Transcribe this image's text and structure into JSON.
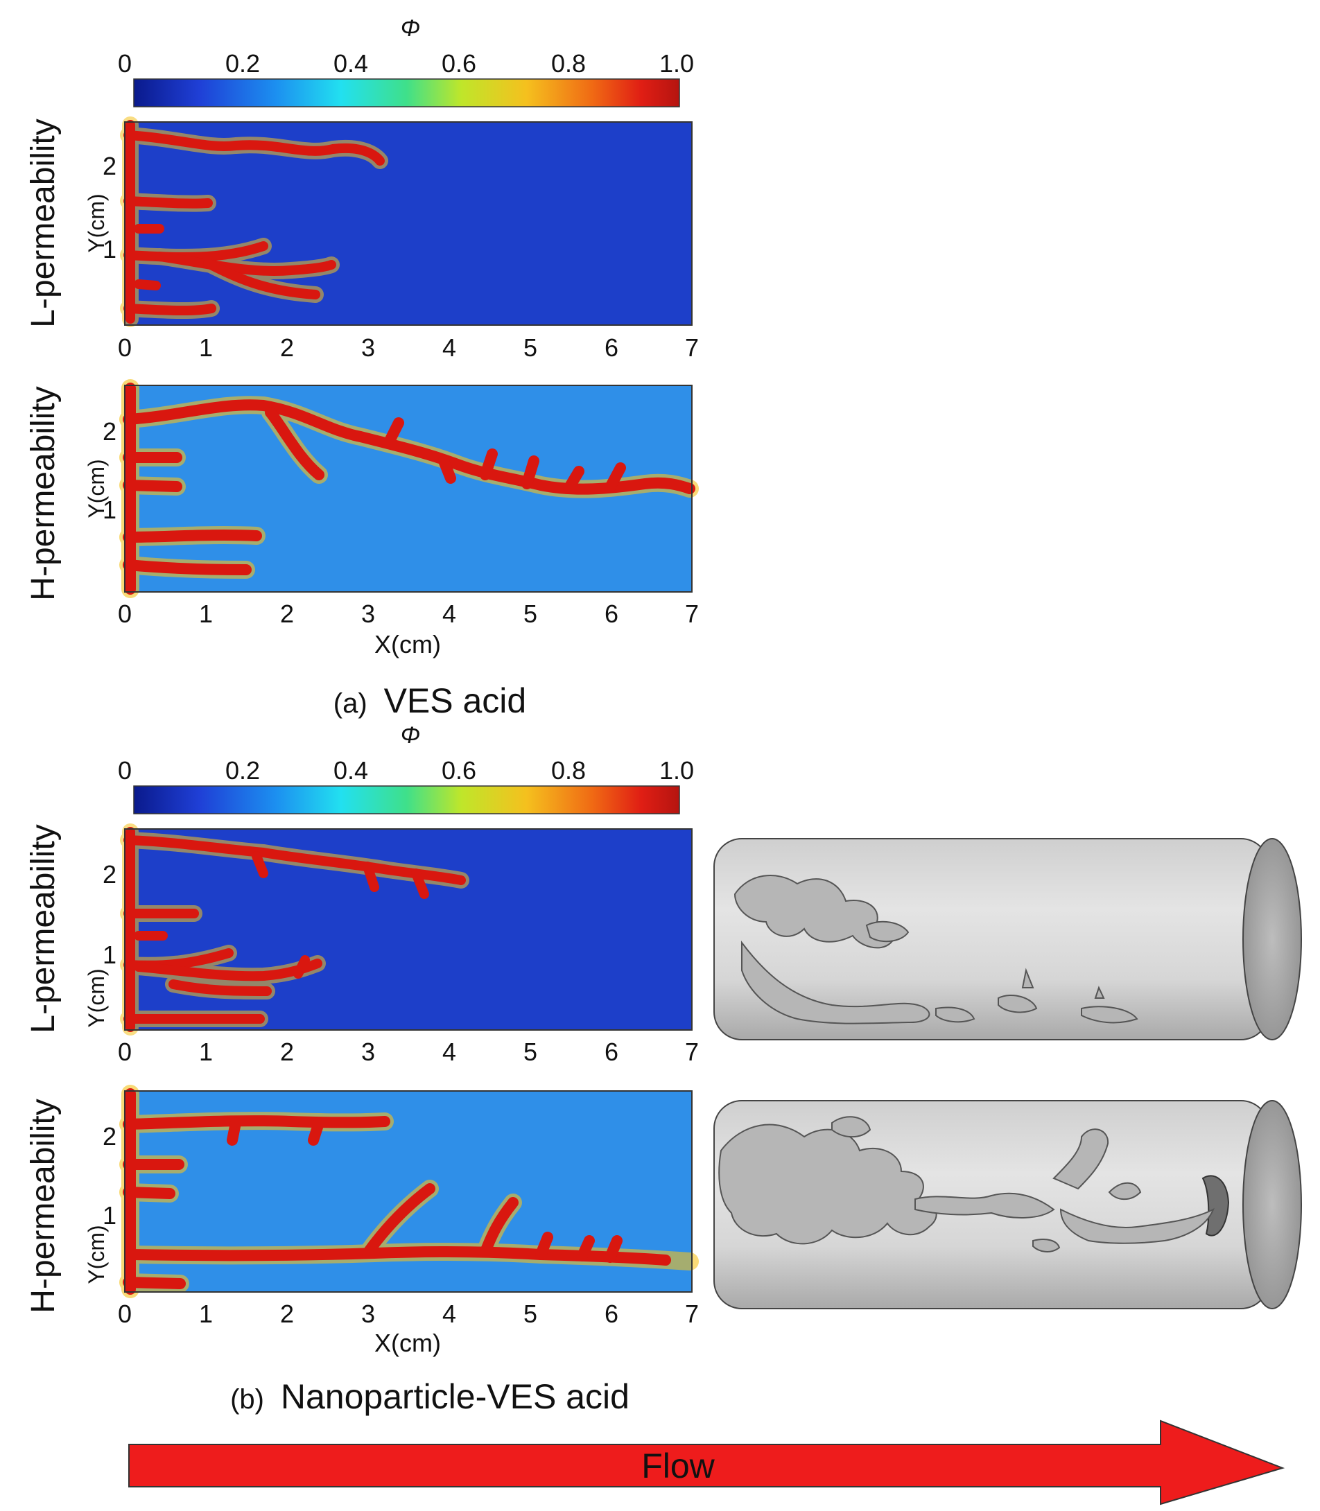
{
  "colorbar": {
    "symbol": "Φ",
    "tick_labels": [
      "0",
      "0.2",
      "0.4",
      "0.6",
      "0.8",
      "1.0"
    ],
    "gradient_colors": [
      "#0a1a8c",
      "#1f3fd6",
      "#1c8ff0",
      "#22e0f0",
      "#3fe08a",
      "#bfe62a",
      "#f5c01e",
      "#f06a14",
      "#e01e14",
      "#b51410"
    ]
  },
  "axes": {
    "x_label": "X(cm)",
    "y_label": "Y(cm)",
    "x_ticks": [
      "0",
      "1",
      "2",
      "3",
      "4",
      "5",
      "6",
      "7"
    ],
    "y_ticks": [
      "1",
      "2"
    ]
  },
  "row_labels": {
    "low": "L-permeability",
    "high": "H-permeability"
  },
  "panel_a": {
    "caption_prefix": "(a)",
    "caption": "VES acid"
  },
  "panel_b": {
    "caption_prefix": "(b)",
    "caption": "Nanoparticle-VES acid"
  },
  "flow_arrow": {
    "label": "Flow",
    "color": "#ee1c1c"
  }
}
